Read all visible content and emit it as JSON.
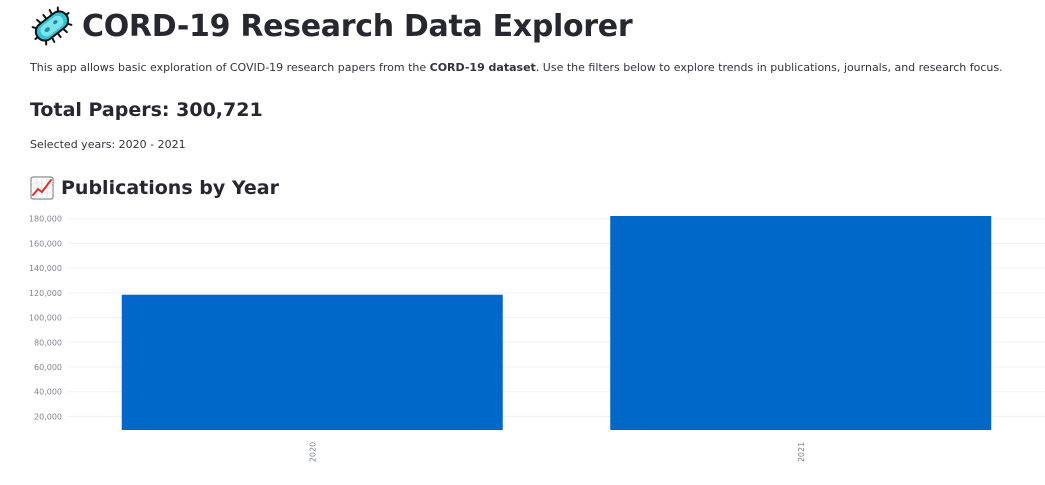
{
  "header": {
    "title": "CORD-19 Research Data Explorer",
    "title_icon": "microbe-icon"
  },
  "intro": {
    "before": "This app allows basic exploration of COVID-19 research papers from the ",
    "dataset": "CORD-19 dataset",
    "after": ". Use the filters below to explore trends in publications, journals, and research focus."
  },
  "stats": {
    "total_papers": "Total Papers: 300,721",
    "selected_years": "Selected years: 2020 - 2021"
  },
  "section": {
    "title": "Publications by Year",
    "icon": "chart-increasing-icon"
  },
  "colors": {
    "bar": "#0068c9",
    "grid": "#eef0f3",
    "tick": "#808495"
  },
  "chart_data": {
    "type": "bar",
    "categories": [
      "2020",
      "2021"
    ],
    "values": [
      118500,
      182221
    ],
    "yticks": [
      "20,000",
      "40,000",
      "60,000",
      "80,000",
      "100,000",
      "120,000",
      "140,000",
      "160,000",
      "180,000"
    ],
    "ytick_values": [
      20000,
      40000,
      60000,
      80000,
      100000,
      120000,
      140000,
      160000,
      180000
    ],
    "ylim": [
      9000,
      182221
    ],
    "grid": true,
    "title": "",
    "xlabel": "",
    "ylabel": ""
  }
}
